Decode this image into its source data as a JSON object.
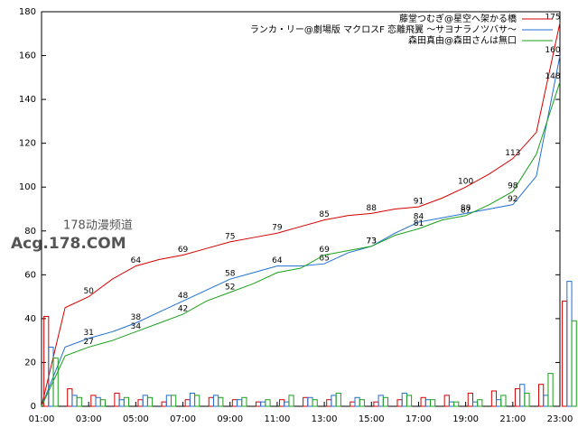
{
  "chart_data": {
    "type": "line",
    "x": [
      1,
      2,
      3,
      4,
      5,
      6,
      7,
      8,
      9,
      10,
      11,
      12,
      13,
      14,
      15,
      16,
      17,
      18,
      19,
      20,
      21,
      22,
      23
    ],
    "xlim": [
      1,
      23
    ],
    "xticks": [
      {
        "value": 1,
        "label": "01:00"
      },
      {
        "value": 3,
        "label": "03:00"
      },
      {
        "value": 5,
        "label": "05:00"
      },
      {
        "value": 7,
        "label": "07:00"
      },
      {
        "value": 9,
        "label": "09:00"
      },
      {
        "value": 11,
        "label": "11:00"
      },
      {
        "value": 13,
        "label": "13:00"
      },
      {
        "value": 15,
        "label": "15:00"
      },
      {
        "value": 17,
        "label": "17:00"
      },
      {
        "value": 19,
        "label": "19:00"
      },
      {
        "value": 21,
        "label": "21:00"
      },
      {
        "value": 23,
        "label": "23:00"
      }
    ],
    "ylim": [
      0,
      180
    ],
    "yticks": [
      0,
      20,
      40,
      60,
      80,
      100,
      120,
      140,
      160,
      180
    ],
    "series": [
      {
        "name": "藤堂つむぎ@星空へ架かる橋",
        "color": "#d40000",
        "values": [
          0,
          45,
          50,
          58,
          64,
          67,
          69,
          72,
          75,
          77,
          79,
          82,
          85,
          87,
          88,
          90,
          91,
          95,
          100,
          106,
          113,
          125,
          175
        ],
        "value_labels": [
          null,
          null,
          "50",
          null,
          "64",
          null,
          "69",
          null,
          "75",
          null,
          "79",
          null,
          "85",
          null,
          "88",
          null,
          "91",
          null,
          "100",
          null,
          "113",
          null,
          "175"
        ],
        "counts": [
          41,
          8,
          5,
          6,
          3,
          2,
          3,
          4,
          3,
          2,
          3,
          4,
          3,
          2,
          2,
          3,
          4,
          5,
          6,
          7,
          8,
          10,
          48
        ]
      },
      {
        "name": "ランカ・リー@劇場版 マクロスF 恋離飛翼 ～サヨナラノツバサ～",
        "color": "#1f6fd0",
        "values": [
          0,
          27,
          31,
          34,
          38,
          43,
          48,
          53,
          58,
          61,
          64,
          64,
          65,
          70,
          73,
          79,
          84,
          86,
          88,
          90,
          92,
          105,
          160
        ],
        "value_labels": [
          null,
          null,
          "31",
          null,
          "38",
          null,
          "48",
          null,
          "58",
          null,
          "64",
          null,
          "65",
          null,
          "73",
          null,
          "84",
          null,
          "88",
          null,
          "92",
          null,
          "160"
        ],
        "counts": [
          27,
          5,
          4,
          3,
          5,
          5,
          6,
          5,
          3,
          2,
          2,
          4,
          5,
          4,
          5,
          6,
          3,
          2,
          2,
          3,
          10,
          5,
          57
        ]
      },
      {
        "name": "森田真由@森田さんは無口",
        "color": "#1aa01a",
        "values": [
          0,
          23,
          27,
          30,
          34,
          38,
          42,
          48,
          52,
          56,
          61,
          63,
          69,
          71,
          73,
          78,
          81,
          85,
          87,
          92,
          98,
          115,
          148
        ],
        "value_labels": [
          null,
          null,
          "27",
          null,
          "34",
          null,
          "42",
          null,
          "52",
          null,
          null,
          null,
          "69",
          null,
          "73",
          null,
          "81",
          null,
          "87",
          null,
          "98",
          null,
          "148"
        ],
        "counts": [
          22,
          4,
          3,
          4,
          4,
          5,
          5,
          4,
          4,
          3,
          5,
          3,
          6,
          3,
          4,
          5,
          3,
          2,
          3,
          5,
          6,
          15,
          39
        ]
      }
    ],
    "legend": "top-right"
  },
  "watermark": {
    "line1": "178动漫频道",
    "line2": "Acg.178.COM"
  }
}
